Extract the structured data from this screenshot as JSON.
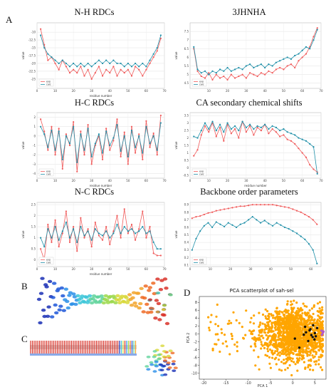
{
  "panel_labels": {
    "a": "A",
    "b": "B",
    "c": "C",
    "d": "D"
  },
  "colors": {
    "series1": "#f05a5a",
    "series2": "#1f8fa8",
    "pca": "#ffa500",
    "pca_points": "#111111",
    "pca_cluster": "#b35cc7"
  },
  "chart_data": [
    {
      "type": "line",
      "title": "N-H RDCs",
      "xlabel": "residue number",
      "ylabel": "value",
      "xlim": [
        0,
        70
      ],
      "ylim": [
        -28,
        -7
      ],
      "yticks": [
        -10,
        -12.5,
        -15,
        -17.5,
        -20,
        -22.5,
        -25
      ],
      "xticks": [
        0,
        10,
        20,
        30,
        40,
        50,
        60,
        70
      ],
      "legend": "bottom-left",
      "series": [
        {
          "name": "exp",
          "color": "#f05a5a",
          "x": [
            2,
            4,
            6,
            8,
            10,
            12,
            14,
            16,
            18,
            20,
            22,
            24,
            26,
            28,
            30,
            32,
            34,
            36,
            38,
            40,
            42,
            44,
            46,
            48,
            50,
            52,
            54,
            56,
            58,
            60,
            62,
            64,
            66,
            68
          ],
          "y": [
            -9,
            -14,
            -19,
            -18,
            -20,
            -22,
            -19,
            -21,
            -23,
            -22,
            -23,
            -21,
            -24,
            -22,
            -25,
            -23,
            -21,
            -24,
            -22,
            -23,
            -21,
            -24,
            -22,
            -23,
            -22,
            -24,
            -21,
            -22,
            -24,
            -22,
            -20,
            -18,
            -16,
            -12
          ]
        },
        {
          "name": "calc",
          "color": "#1f8fa8",
          "x": [
            2,
            4,
            6,
            8,
            10,
            12,
            14,
            16,
            18,
            20,
            22,
            24,
            26,
            28,
            30,
            32,
            34,
            36,
            38,
            40,
            42,
            44,
            46,
            48,
            50,
            52,
            54,
            56,
            58,
            60,
            62,
            64,
            66,
            68
          ],
          "y": [
            -11,
            -15,
            -17,
            -18,
            -19,
            -20,
            -19,
            -20,
            -21,
            -20,
            -21,
            -20,
            -21,
            -20,
            -21,
            -20,
            -19,
            -20,
            -19,
            -20,
            -19,
            -20,
            -20,
            -21,
            -20,
            -21,
            -20,
            -21,
            -20,
            -21,
            -19,
            -17,
            -15,
            -11
          ]
        }
      ]
    },
    {
      "type": "line",
      "title": "3JHNHA",
      "xlabel": "",
      "ylabel": "value",
      "xlim": [
        0,
        70
      ],
      "ylim": [
        4.2,
        8.0
      ],
      "yticks": [
        7.5,
        7.0,
        6.5,
        6.0,
        5.5,
        5.0,
        4.5
      ],
      "xticks": [
        10,
        20,
        30,
        40,
        50,
        60,
        70
      ],
      "legend": "bottom-left",
      "series": [
        {
          "name": "exp",
          "color": "#f05a5a",
          "x": [
            2,
            4,
            6,
            8,
            10,
            12,
            14,
            16,
            18,
            20,
            22,
            24,
            26,
            28,
            30,
            32,
            34,
            36,
            38,
            40,
            42,
            44,
            46,
            48,
            50,
            52,
            54,
            56,
            58,
            60,
            62,
            64,
            66,
            68
          ],
          "y": [
            6.5,
            5.2,
            4.9,
            4.8,
            5.1,
            4.7,
            5.0,
            4.8,
            4.9,
            4.7,
            5.0,
            4.8,
            4.9,
            5.0,
            4.8,
            5.1,
            5.0,
            4.9,
            5.1,
            5.0,
            5.2,
            5.1,
            5.3,
            5.4,
            5.3,
            5.5,
            5.6,
            5.4,
            5.8,
            6.0,
            6.2,
            6.6,
            7.2,
            7.7
          ]
        },
        {
          "name": "calc",
          "color": "#1f8fa8",
          "x": [
            2,
            4,
            6,
            8,
            10,
            12,
            14,
            16,
            18,
            20,
            22,
            24,
            26,
            28,
            30,
            32,
            34,
            36,
            38,
            40,
            42,
            44,
            46,
            48,
            50,
            52,
            54,
            56,
            58,
            60,
            62,
            64,
            66,
            68
          ],
          "y": [
            6.6,
            5.3,
            5.1,
            5.2,
            5.0,
            5.2,
            5.1,
            5.3,
            5.2,
            5.4,
            5.2,
            5.3,
            5.4,
            5.3,
            5.5,
            5.6,
            5.4,
            5.5,
            5.6,
            5.4,
            5.6,
            5.5,
            5.7,
            5.8,
            5.9,
            6.0,
            5.9,
            6.1,
            6.2,
            6.4,
            6.6,
            6.5,
            7.0,
            7.6
          ]
        }
      ]
    },
    {
      "type": "line",
      "title": "H-C RDCs",
      "xlabel": "residue number",
      "ylabel": "value",
      "xlim": [
        0,
        70
      ],
      "ylim": [
        -4.5,
        2.5
      ],
      "yticks": [
        2,
        1,
        0,
        -1,
        -2,
        -3,
        -4
      ],
      "xticks": [
        0,
        10,
        20,
        30,
        40,
        50,
        60,
        70
      ],
      "legend": "bottom-left",
      "series": [
        {
          "name": "exp",
          "color": "#f05a5a",
          "x": [
            2,
            4,
            6,
            8,
            10,
            12,
            14,
            16,
            18,
            20,
            22,
            24,
            26,
            28,
            30,
            32,
            34,
            36,
            38,
            40,
            42,
            44,
            46,
            48,
            50,
            52,
            54,
            56,
            58,
            60,
            62,
            64,
            66,
            68
          ],
          "y": [
            1.8,
            0.5,
            -1.5,
            1.0,
            -2.0,
            0.8,
            -3.5,
            0.2,
            -1.0,
            1.5,
            -3.8,
            0.5,
            -2.0,
            1.2,
            -3.0,
            -1.0,
            0.0,
            -2.5,
            0.8,
            -1.5,
            -0.5,
            1.8,
            -2.2,
            0.4,
            -3.0,
            1.0,
            -1.8,
            0.2,
            -2.5,
            1.6,
            -1.2,
            0.3,
            -2.0,
            2.2
          ]
        },
        {
          "name": "calc",
          "color": "#1f8fa8",
          "x": [
            2,
            4,
            6,
            8,
            10,
            12,
            14,
            16,
            18,
            20,
            22,
            24,
            26,
            28,
            30,
            32,
            34,
            36,
            38,
            40,
            42,
            44,
            46,
            48,
            50,
            52,
            54,
            56,
            58,
            60,
            62,
            64,
            66,
            68
          ],
          "y": [
            1.0,
            0.2,
            -1.2,
            0.6,
            -1.5,
            0.5,
            -2.5,
            0.0,
            -0.8,
            1.0,
            -2.8,
            0.2,
            -1.5,
            0.8,
            -2.2,
            -0.8,
            0.2,
            -1.8,
            0.5,
            -1.0,
            -0.2,
            1.2,
            -1.6,
            0.0,
            -2.2,
            0.6,
            -1.2,
            0.0,
            -1.8,
            1.0,
            -0.8,
            0.0,
            -1.5,
            1.4
          ]
        }
      ]
    },
    {
      "type": "line",
      "title": "CA secondary chemical shifts",
      "xlabel": "residue number",
      "ylabel": "value",
      "xlim": [
        0,
        70
      ],
      "ylim": [
        -0.7,
        3.7
      ],
      "yticks": [
        3.5,
        3.0,
        2.5,
        2.0,
        1.5,
        1.0,
        0.5,
        0.0,
        -0.5
      ],
      "xticks": [
        0,
        10,
        20,
        30,
        40,
        50,
        60,
        70
      ],
      "legend": "bottom-left",
      "series": [
        {
          "name": "exp",
          "color": "#f05a5a",
          "x": [
            2,
            4,
            6,
            8,
            10,
            12,
            14,
            16,
            18,
            20,
            22,
            24,
            26,
            28,
            30,
            32,
            34,
            36,
            38,
            40,
            42,
            44,
            46,
            48,
            50,
            52,
            54,
            56,
            58,
            60,
            62,
            64,
            66,
            68
          ],
          "y": [
            0.8,
            1.2,
            2.2,
            2.8,
            2.4,
            3.0,
            2.1,
            2.7,
            1.8,
            2.9,
            2.3,
            2.6,
            2.0,
            3.1,
            2.4,
            2.8,
            2.2,
            2.7,
            2.5,
            2.9,
            2.3,
            2.6,
            2.4,
            2.1,
            2.2,
            1.9,
            1.8,
            1.6,
            1.3,
            1.0,
            0.7,
            0.2,
            -0.1,
            -0.3
          ]
        },
        {
          "name": "calc",
          "color": "#1f8fa8",
          "x": [
            2,
            4,
            6,
            8,
            10,
            12,
            14,
            16,
            18,
            20,
            22,
            24,
            26,
            28,
            30,
            32,
            34,
            36,
            38,
            40,
            42,
            44,
            46,
            48,
            50,
            52,
            54,
            56,
            58,
            60,
            62,
            64,
            66,
            68
          ],
          "y": [
            2.1,
            2.0,
            2.5,
            3.0,
            2.6,
            3.1,
            2.5,
            2.9,
            2.4,
            3.0,
            2.6,
            2.8,
            2.5,
            3.1,
            2.7,
            2.9,
            2.6,
            2.8,
            2.7,
            2.9,
            2.6,
            2.8,
            2.7,
            2.5,
            2.6,
            2.4,
            2.3,
            2.2,
            2.0,
            1.9,
            1.8,
            1.6,
            1.4,
            -0.4
          ]
        }
      ]
    },
    {
      "type": "line",
      "title": "N-C RDCs",
      "xlabel": "residue number",
      "ylabel": "value",
      "xlim": [
        0,
        70
      ],
      "ylim": [
        -0.3,
        2.6
      ],
      "yticks": [
        2.5,
        2.0,
        1.5,
        1.0,
        0.5,
        0.0
      ],
      "xticks": [
        0,
        10,
        20,
        30,
        40,
        50,
        60,
        70
      ],
      "legend": "bottom-left",
      "series": [
        {
          "name": "exp",
          "color": "#f05a5a",
          "x": [
            2,
            4,
            6,
            8,
            10,
            12,
            14,
            16,
            18,
            20,
            22,
            24,
            26,
            28,
            30,
            32,
            34,
            36,
            38,
            40,
            42,
            44,
            46,
            48,
            50,
            52,
            54,
            56,
            58,
            60,
            62,
            64,
            66,
            68
          ],
          "y": [
            0.5,
            0.0,
            1.6,
            0.8,
            1.8,
            0.6,
            1.2,
            2.2,
            0.8,
            1.5,
            0.4,
            1.9,
            1.0,
            1.4,
            0.6,
            1.7,
            1.1,
            0.9,
            1.5,
            0.7,
            1.3,
            2.0,
            1.0,
            2.3,
            1.2,
            1.6,
            0.9,
            1.4,
            2.2,
            1.0,
            1.5,
            0.3,
            0.2,
            0.2
          ]
        },
        {
          "name": "calc",
          "color": "#1f8fa8",
          "x": [
            2,
            4,
            6,
            8,
            10,
            12,
            14,
            16,
            18,
            20,
            22,
            24,
            26,
            28,
            30,
            32,
            34,
            36,
            38,
            40,
            42,
            44,
            46,
            48,
            50,
            52,
            54,
            56,
            58,
            60,
            62,
            64,
            66,
            68
          ],
          "y": [
            1.0,
            0.6,
            1.4,
            1.0,
            1.5,
            0.9,
            1.3,
            1.7,
            1.0,
            1.4,
            0.8,
            1.5,
            1.1,
            1.3,
            0.9,
            1.4,
            1.2,
            1.1,
            1.3,
            1.0,
            1.2,
            1.6,
            1.2,
            1.5,
            1.3,
            1.4,
            1.2,
            1.3,
            1.5,
            1.2,
            1.3,
            0.8,
            0.5,
            0.5
          ]
        }
      ]
    },
    {
      "type": "line",
      "title": "Backbone order parameters",
      "xlabel": "",
      "ylabel": "value",
      "xlim": [
        0,
        65
      ],
      "ylim": [
        0.08,
        0.93
      ],
      "yticks": [
        0.9,
        0.8,
        0.7,
        0.6,
        0.5,
        0.4,
        0.3,
        0.2,
        0.1
      ],
      "xticks": [
        0,
        10,
        20,
        30,
        40,
        50,
        60
      ],
      "legend": "bottom-left",
      "series": [
        {
          "name": "exp",
          "color": "#f05a5a",
          "x": [
            1,
            3,
            5,
            7,
            9,
            11,
            13,
            15,
            17,
            19,
            21,
            23,
            25,
            27,
            29,
            31,
            33,
            35,
            37,
            39,
            41,
            43,
            45,
            47,
            49,
            51,
            53,
            55,
            57,
            59,
            61,
            63
          ],
          "y": [
            0.72,
            0.74,
            0.75,
            0.77,
            0.79,
            0.8,
            0.82,
            0.83,
            0.84,
            0.85,
            0.86,
            0.87,
            0.88,
            0.88,
            0.89,
            0.9,
            0.9,
            0.9,
            0.9,
            0.9,
            0.9,
            0.89,
            0.88,
            0.87,
            0.86,
            0.84,
            0.82,
            0.8,
            0.77,
            0.74,
            0.7,
            0.64
          ]
        },
        {
          "name": "calc",
          "color": "#1f8fa8",
          "x": [
            1,
            3,
            5,
            7,
            9,
            11,
            13,
            15,
            17,
            19,
            21,
            23,
            25,
            27,
            29,
            31,
            33,
            35,
            37,
            39,
            41,
            43,
            45,
            47,
            49,
            51,
            53,
            55,
            57,
            59,
            61,
            63
          ],
          "y": [
            0.3,
            0.45,
            0.55,
            0.62,
            0.66,
            0.6,
            0.67,
            0.64,
            0.61,
            0.66,
            0.63,
            0.6,
            0.64,
            0.66,
            0.7,
            0.74,
            0.7,
            0.66,
            0.69,
            0.65,
            0.62,
            0.66,
            0.63,
            0.6,
            0.58,
            0.55,
            0.52,
            0.48,
            0.44,
            0.38,
            0.3,
            0.12
          ]
        }
      ]
    },
    {
      "type": "scatter",
      "title": "PCA scatterplot of sah-sel",
      "xlabel": "PCA 1",
      "ylabel": "PCA 2",
      "xlim": [
        -21,
        7.5
      ],
      "ylim": [
        -11.5,
        9.5
      ],
      "xticks": [
        -20,
        -15,
        -10,
        -5,
        0,
        5
      ],
      "yticks": [
        8,
        6,
        4,
        2,
        0,
        -2,
        -4,
        -6,
        -8,
        -10
      ],
      "legend": "none",
      "highlight_points": [
        [
          3,
          0.4
        ],
        [
          4,
          1.2
        ],
        [
          4.5,
          -0.8
        ],
        [
          5,
          0.2
        ],
        [
          3.5,
          -1.8
        ],
        [
          2.5,
          -0.2
        ],
        [
          5.5,
          1.5
        ],
        [
          4.2,
          -0.3
        ],
        [
          3.8,
          0.9
        ],
        [
          4.9,
          -1.4
        ],
        [
          2.8,
          1.8
        ],
        [
          5.2,
          -0.6
        ],
        [
          1.5,
          -3.5
        ],
        [
          0.5,
          -1.2
        ],
        [
          4.6,
          2.2
        ]
      ],
      "cluster_points": [
        [
          6.5,
          0.8
        ],
        [
          6.8,
          0.3
        ],
        [
          6.6,
          -0.2
        ],
        [
          6.9,
          0.6
        ]
      ]
    }
  ]
}
